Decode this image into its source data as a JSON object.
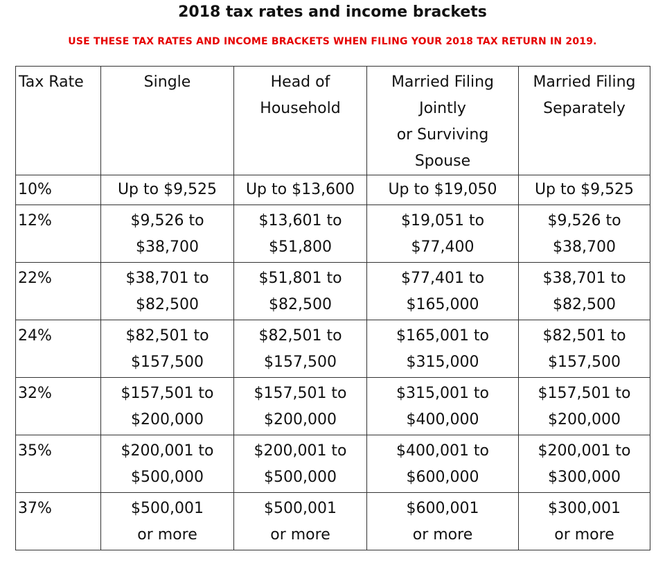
{
  "title": "2018 tax rates and income brackets",
  "subtitle": "USE THESE TAX RATES AND INCOME BRACKETS WHEN FILING YOUR 2018 TAX RETURN IN 2019.",
  "colors": {
    "subtitle": "#e60000",
    "border": "#333333",
    "text": "#111111"
  },
  "table": {
    "headers": [
      [
        "Tax Rate"
      ],
      [
        "Single"
      ],
      [
        "Head of",
        "Household"
      ],
      [
        "Married Filing",
        "Jointly",
        "or Surviving",
        "Spouse"
      ],
      [
        "Married Filing",
        "Separately"
      ]
    ],
    "rows": [
      {
        "rate": "10%",
        "single": [
          "Up to $9,525"
        ],
        "head_of_household": [
          "Up to $13,600"
        ],
        "married_jointly": [
          "Up to $19,050"
        ],
        "married_separately": [
          "Up to $9,525"
        ]
      },
      {
        "rate": "12%",
        "single": [
          "$9,526 to",
          "$38,700"
        ],
        "head_of_household": [
          "$13,601 to",
          "$51,800"
        ],
        "married_jointly": [
          "$19,051 to",
          "$77,400"
        ],
        "married_separately": [
          "$9,526 to",
          "$38,700"
        ]
      },
      {
        "rate": "22%",
        "single": [
          "$38,701 to",
          "$82,500"
        ],
        "head_of_household": [
          "$51,801 to",
          "$82,500"
        ],
        "married_jointly": [
          "$77,401 to",
          "$165,000"
        ],
        "married_separately": [
          "$38,701 to",
          "$82,500"
        ]
      },
      {
        "rate": "24%",
        "single": [
          "$82,501 to",
          "$157,500"
        ],
        "head_of_household": [
          "$82,501 to",
          "$157,500"
        ],
        "married_jointly": [
          "$165,001 to",
          "$315,000"
        ],
        "married_separately": [
          "$82,501 to",
          "$157,500"
        ]
      },
      {
        "rate": "32%",
        "single": [
          "$157,501 to",
          "$200,000"
        ],
        "head_of_household": [
          "$157,501 to",
          "$200,000"
        ],
        "married_jointly": [
          "$315,001 to",
          "$400,000"
        ],
        "married_separately": [
          "$157,501 to",
          "$200,000"
        ]
      },
      {
        "rate": "35%",
        "single": [
          "$200,001 to",
          "$500,000"
        ],
        "head_of_household": [
          "$200,001 to",
          "$500,000"
        ],
        "married_jointly": [
          "$400,001 to",
          "$600,000"
        ],
        "married_separately": [
          "$200,001 to",
          "$300,000"
        ]
      },
      {
        "rate": "37%",
        "single": [
          "$500,001",
          "or more"
        ],
        "head_of_household": [
          "$500,001",
          "or more"
        ],
        "married_jointly": [
          "$600,001",
          "or more"
        ],
        "married_separately": [
          "$300,001",
          "or more"
        ]
      }
    ]
  }
}
